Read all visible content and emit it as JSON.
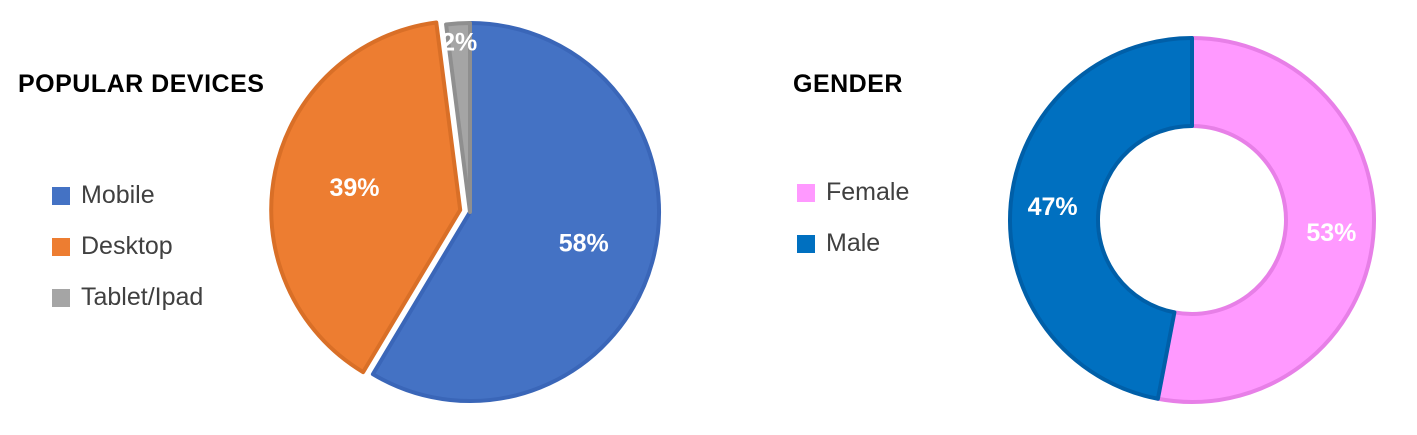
{
  "chart_data": [
    {
      "type": "pie",
      "title": "POPULAR DEVICES",
      "categories": [
        "Mobile",
        "Desktop",
        "Tablet/Ipad"
      ],
      "values": [
        58,
        39,
        2
      ],
      "labels": [
        "58%",
        "39%",
        "2%"
      ],
      "colors": [
        "#4472C4",
        "#ED7D31",
        "#A5A5A5"
      ],
      "edge_colors": [
        "#3A66B8",
        "#D96F27",
        "#8F8F8F"
      ],
      "legend_position": "left"
    },
    {
      "type": "doughnut",
      "title": "GENDER",
      "categories": [
        "Female",
        "Male"
      ],
      "values": [
        53,
        47
      ],
      "labels": [
        "53%",
        "47%"
      ],
      "colors": [
        "#FF99FF",
        "#0070C0"
      ],
      "edge_colors": [
        "#E77FE7",
        "#005FA8"
      ],
      "legend_position": "left"
    }
  ]
}
